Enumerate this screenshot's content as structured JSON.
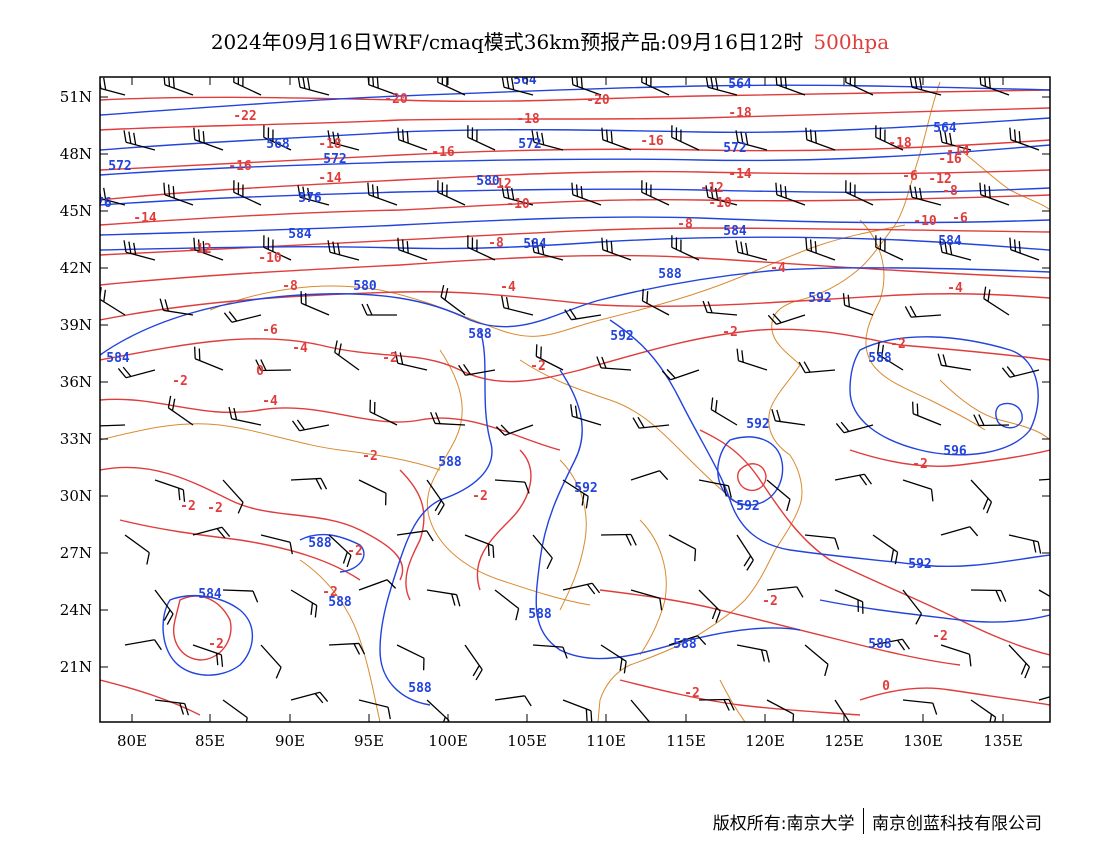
{
  "title": {
    "main": "2024年09月16日WRF/cmaq模式36km预报产品:09月16日12时",
    "level": "500hpa"
  },
  "axes": {
    "lat_labels": [
      "51N",
      "48N",
      "45N",
      "42N",
      "39N",
      "36N",
      "33N",
      "30N",
      "27N",
      "24N",
      "21N"
    ],
    "lon_labels": [
      "80E",
      "85E",
      "90E",
      "95E",
      "100E",
      "105E",
      "110E",
      "115E",
      "120E",
      "125E",
      "130E",
      "135E"
    ]
  },
  "footer": {
    "copyright": "版权所有:南京大学",
    "company": "南京创蓝科技有限公司"
  },
  "colors": {
    "height_contour": "#2244dd",
    "temperature_contour": "#e03c3c",
    "coastline": "#d98a30",
    "wind_barb": "#000000",
    "level_text": "#e03c3c"
  },
  "height_labels": [
    "584",
    "584",
    "580",
    "580",
    "576",
    "576",
    "572",
    "572",
    "572",
    "572",
    "568",
    "564",
    "564",
    "564",
    "584",
    "584",
    "584",
    "584",
    "588",
    "588",
    "588",
    "588",
    "588",
    "588",
    "588",
    "588",
    "588",
    "588",
    "592",
    "592",
    "592",
    "592",
    "592",
    "592",
    "596"
  ],
  "temperature_labels": [
    "-22",
    "-20",
    "-20",
    "-18",
    "-18",
    "-18",
    "-18",
    "-16",
    "-16",
    "-16",
    "-16",
    "-14",
    "-14",
    "-14",
    "-14",
    "-12",
    "-12",
    "-12",
    "-12",
    "-10",
    "-10",
    "-10",
    "-10",
    "-8",
    "-8",
    "-8",
    "-8",
    "-6",
    "-6",
    "-6",
    "-4",
    "-4",
    "-4",
    "-4",
    "-4",
    "-2",
    "-2",
    "-2",
    "-2",
    "-2",
    "-2",
    "-2",
    "-2",
    "-2",
    "-2",
    "-2",
    "-2",
    "-2",
    "-2",
    "-2",
    "0",
    "0",
    "-2"
  ]
}
